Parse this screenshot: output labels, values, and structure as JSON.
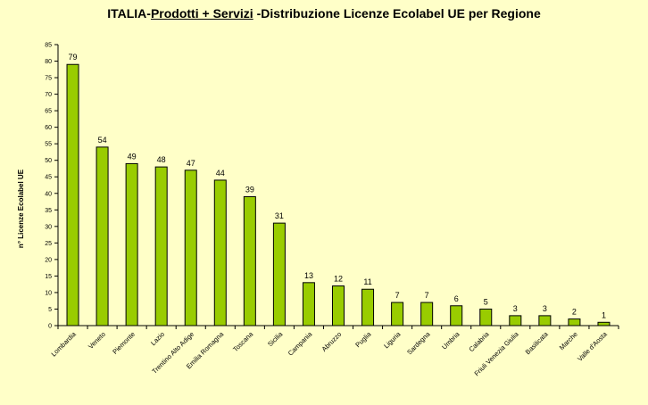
{
  "colors": {
    "background": "#ffffc8",
    "bar_fill": "#99cc00",
    "bar_stroke": "#000000"
  },
  "chart_data": {
    "type": "bar",
    "title_parts": {
      "prefix": "ITALIA-",
      "underlined": "Prodotti + Servizi",
      "suffix": " -Distribuzione Licenze Ecolabel UE per Regione"
    },
    "title": "ITALIA-Prodotti + Servizi -Distribuzione Licenze Ecolabel UE per Regione",
    "xlabel": "",
    "ylabel": "n° Licenze  Ecolabel  UE",
    "ylim": [
      0,
      85
    ],
    "ytick_step": 5,
    "grid": false,
    "legend": "none",
    "categories": [
      "Lombardia",
      "Veneto",
      "Piemonte",
      "Lazio",
      "Trentino Alto Adige",
      "Emilia Romagna",
      "Toscana",
      "Sicilia",
      "Campania",
      "Abruzzo",
      "Puglia",
      "Liguria",
      "Sardegna",
      "Umbria",
      "Calabria",
      "Friuli Venezia Giulia",
      "Basilicata",
      "Marche",
      "Valle d'Aosta"
    ],
    "values": [
      79,
      54,
      49,
      48,
      47,
      44,
      39,
      31,
      13,
      12,
      11,
      7,
      7,
      6,
      5,
      3,
      3,
      2,
      1
    ]
  }
}
